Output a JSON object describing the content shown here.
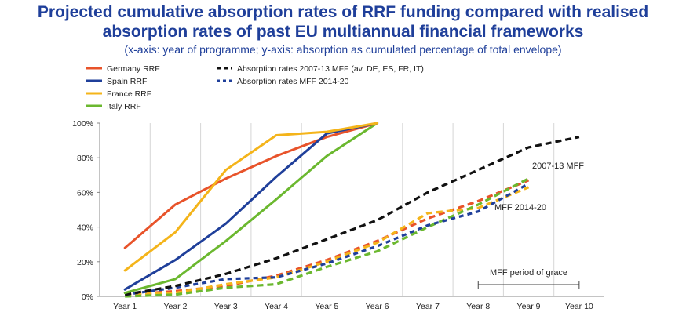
{
  "header": {
    "title_line1": "Projected cumulative absorption rates of RRF funding compared with realised",
    "title_line2": "absorption rates of past EU multiannual financial frameworks",
    "subtitle": "(x-axis: year of programme; y-axis: absorption as cumulated percentage of total envelope)"
  },
  "chart_data": {
    "type": "line",
    "title": "Projected cumulative absorption rates of RRF funding compared with realised absorption rates of past EU multiannual financial frameworks",
    "subtitle": "(x-axis: year of programme; y-axis: absorption as cumulated percentage of total envelope)",
    "categories": [
      "Year 1",
      "Year 2",
      "Year 3",
      "Year 4",
      "Year 5",
      "Year 6",
      "Year 7",
      "Year 8",
      "Year 9",
      "Year 10"
    ],
    "y_ticks": [
      "0%",
      "20%",
      "40%",
      "60%",
      "80%",
      "100%"
    ],
    "ylim": [
      0,
      100
    ],
    "grid": "vertical gridlines at year boundaries",
    "legend_position": "top-left",
    "series": [
      {
        "name": "Germany RRF",
        "color": "#e8532a",
        "style": "solid",
        "values": [
          28,
          53,
          68,
          81,
          92,
          100,
          null,
          null,
          null,
          null
        ]
      },
      {
        "name": "Spain RRF",
        "color": "#1f3f9a",
        "style": "solid",
        "values": [
          4,
          21,
          42,
          69,
          94,
          100,
          null,
          null,
          null,
          null
        ]
      },
      {
        "name": "France RRF",
        "color": "#f4b41a",
        "style": "solid",
        "values": [
          15,
          37,
          73,
          93,
          95,
          100,
          null,
          null,
          null,
          null
        ]
      },
      {
        "name": "Italy RRF",
        "color": "#6bb82f",
        "style": "solid",
        "values": [
          2,
          10,
          32,
          56,
          81,
          100,
          null,
          null,
          null,
          null
        ]
      },
      {
        "name": "Absorption rates 2007-13 MFF  (av. DE, ES, FR, IT)",
        "color": "#111111",
        "style": "dashed",
        "values": [
          1,
          6,
          13,
          22,
          33,
          44,
          60,
          73,
          86,
          92
        ]
      },
      {
        "name": "Absorption rates MFF 2014-20",
        "color": "#1f3f9a",
        "style": "dotted",
        "values": [
          1,
          5,
          10,
          11,
          19,
          29,
          41,
          49,
          65,
          null
        ]
      },
      {
        "name": "",
        "color": "#e8532a",
        "style": "dashed",
        "values": [
          1,
          3,
          6,
          12,
          21,
          32,
          45,
          55,
          67,
          null
        ]
      },
      {
        "name": "",
        "color": "#f4b41a",
        "style": "dashed",
        "values": [
          1,
          2,
          7,
          11,
          20,
          31,
          48,
          51,
          63,
          null
        ]
      },
      {
        "name": "",
        "color": "#6bb82f",
        "style": "dashed",
        "values": [
          0,
          1,
          5,
          7,
          17,
          26,
          40,
          53,
          68,
          null
        ]
      }
    ],
    "annotations": {
      "mff_2007_label": "2007-13 MFF",
      "mff_2014_label": "MFF 2014-20",
      "grace_label": "MFF period of grace"
    }
  }
}
